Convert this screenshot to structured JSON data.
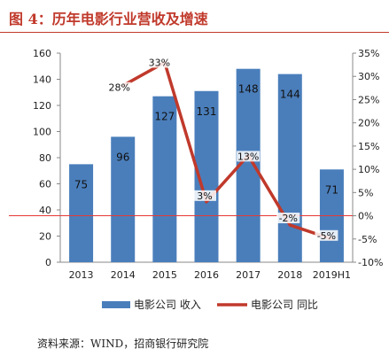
{
  "header": {
    "title": "图 4：历年电影行业营收及增速"
  },
  "footer": {
    "source": "资料来源：WIND，招商银行研究院"
  },
  "colors": {
    "bar": "#4a7ebb",
    "line": "#c0392b",
    "title": "#c0392b",
    "zero_line": "#e53935"
  },
  "chart_data": {
    "type": "bar",
    "categories": [
      "2013",
      "2014",
      "2015",
      "2016",
      "2017",
      "2018",
      "2019H1"
    ],
    "series": [
      {
        "name": "电影公司 收入",
        "type": "bar",
        "axis": "left",
        "values": [
          75,
          96,
          127,
          131,
          148,
          144,
          71
        ],
        "labels": [
          "75",
          "96",
          "127",
          "131",
          "148",
          "144",
          "71"
        ]
      },
      {
        "name": "电影公司 同比",
        "type": "line",
        "axis": "right",
        "values": [
          null,
          28,
          33,
          3,
          13,
          -2,
          -5
        ],
        "labels": [
          "",
          "28%",
          "33%",
          "3%",
          "13%",
          "-2%",
          "-5%"
        ]
      }
    ],
    "y_left": {
      "min": 0,
      "max": 160,
      "ticks": [
        "0",
        "20",
        "40",
        "60",
        "80",
        "100",
        "120",
        "140",
        "160"
      ]
    },
    "y_right": {
      "min": -10,
      "max": 35,
      "ticks": [
        "-10%",
        "-5%",
        "0%",
        "5%",
        "10%",
        "15%",
        "20%",
        "25%",
        "30%",
        "35%"
      ]
    },
    "grid": false,
    "legend": "bottom"
  }
}
